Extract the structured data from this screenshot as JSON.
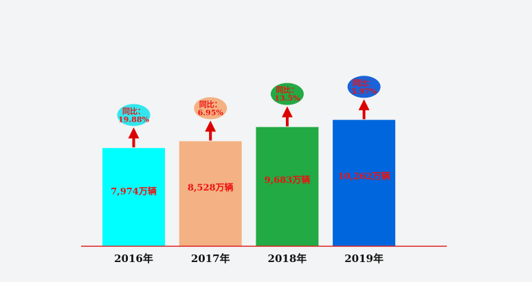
{
  "chart_data": {
    "type": "bar",
    "categories": [
      "2016年",
      "2017年",
      "2018年",
      "2019年"
    ],
    "values": [
      7974,
      8528,
      9683,
      10262
    ],
    "value_labels": [
      "7,974万辆",
      "8,528万辆",
      "9,683万辆",
      "10,262万辆"
    ],
    "yoy_prefix": "同比：",
    "yoy_values": [
      "19.88%",
      "6.95%",
      "13.5%",
      "5.97%"
    ],
    "bar_colors": [
      "#00ffff",
      "#f4b183",
      "#22aa44",
      "#0066dd"
    ],
    "bubble_colors": [
      "#33e6ee",
      "#f4b183",
      "#22aa44",
      "#1a63d8"
    ],
    "label_color": "#ee1111",
    "arrow_color": "#dd0000",
    "baseline_color": "#dd2222",
    "title": "",
    "xlabel": "",
    "ylabel": "",
    "ylim": [
      0,
      12000
    ],
    "grid": false,
    "legend": "none"
  }
}
